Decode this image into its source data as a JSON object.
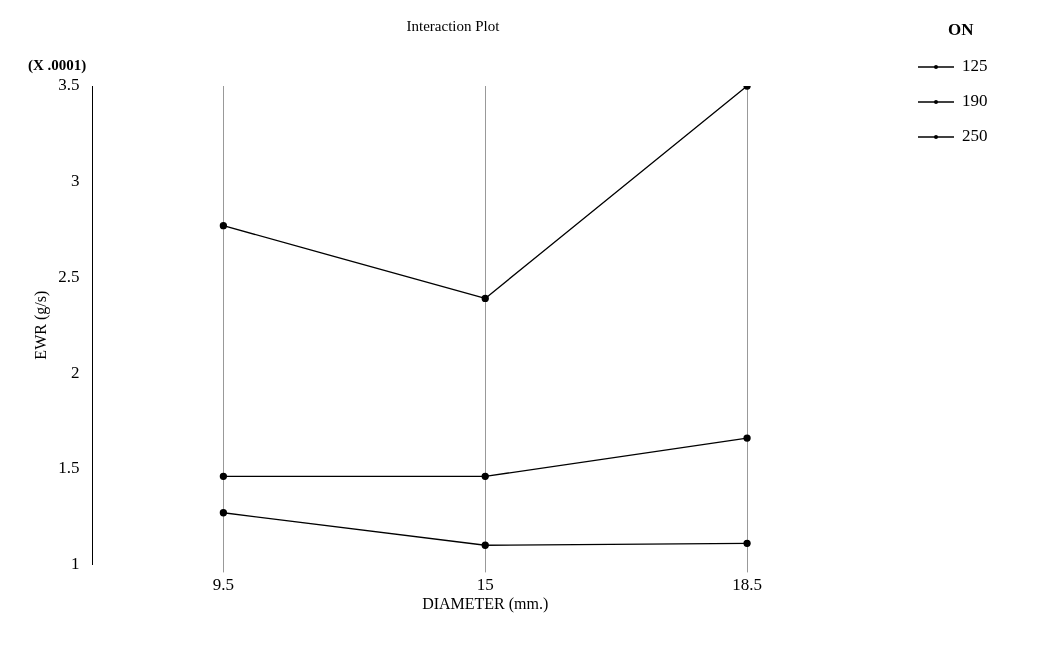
{
  "chart_data": {
    "type": "line",
    "title": "Interaction Plot",
    "xlabel": "DIAMETER (mm.)",
    "ylabel": "EWR (g/s)",
    "legend_title": "ON",
    "annotations": [
      "(X .0001)"
    ],
    "categories": [
      "9.5",
      "15",
      "18.5"
    ],
    "series": [
      {
        "name": "125",
        "color": "#000000",
        "values": [
          1.27,
          1.1,
          1.11
        ]
      },
      {
        "name": "190",
        "color": "#000000",
        "values": [
          1.46,
          1.46,
          1.66
        ]
      },
      {
        "name": "250",
        "color": "#000000",
        "values": [
          2.77,
          2.39,
          3.5
        ]
      }
    ],
    "ylim": [
      1,
      3.5
    ],
    "yticks": [
      1,
      1.5,
      2,
      2.5,
      3,
      3.5
    ],
    "grid": "x",
    "legend": "right",
    "marker": "circle",
    "line_style": "solid"
  }
}
